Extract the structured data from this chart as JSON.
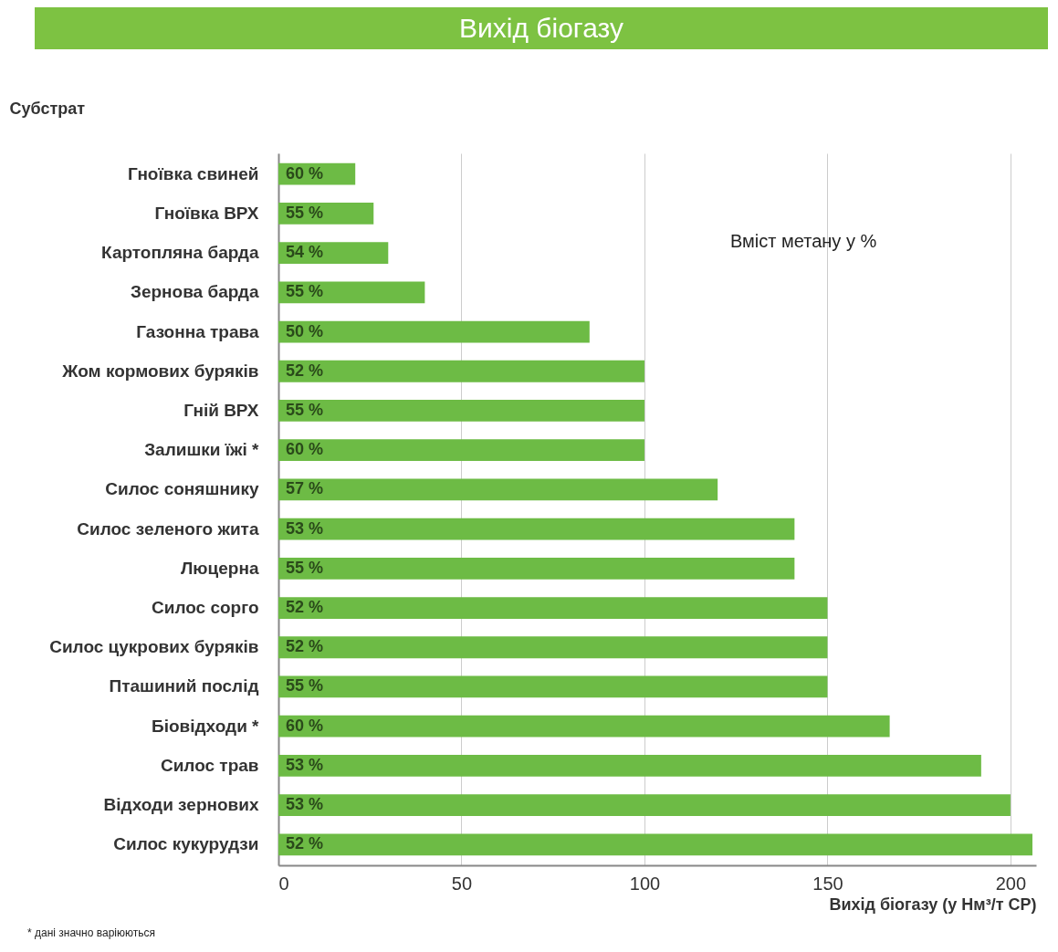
{
  "chart_data": {
    "type": "bar",
    "orientation": "horizontal",
    "title": "Вихід біогазу",
    "ylabel": "Субстрат",
    "xlabel": "Вихід біогазу (у Нм³/т СР)",
    "categories": [
      "Гноївка свиней",
      "Гноївка ВРХ",
      "Картопляна барда",
      "Зернова барда",
      "Газонна трава",
      "Жом кормових буряків",
      "Гній ВРХ",
      "Залишки їжі *",
      "Силос соняшнику",
      "Силос зеленого жита",
      "Люцерна",
      "Силос сорго",
      "Силос цукрових буряків",
      "Пташиний послід",
      "Біовідходи *",
      "Силос трав",
      "Відходи зернових",
      "Силос кукурудзи"
    ],
    "values": [
      21,
      26,
      30,
      40,
      85,
      100,
      100,
      100,
      120,
      141,
      141,
      150,
      150,
      150,
      167,
      192,
      200,
      206
    ],
    "color": "#6dbb45",
    "xlim": [
      0,
      207
    ],
    "xticks": [
      0,
      50,
      100,
      150,
      200
    ],
    "grid": "x",
    "annotations": [
      "Вміст метану у %",
      "* дані значно варіюються",
      "60 %",
      "55 %",
      "54 %",
      "55 %",
      "50 %",
      "52 %",
      "55 %",
      "60 %",
      "57 %",
      "53 %",
      "55 %",
      "52 %",
      "52 %",
      "55 %",
      "60 %",
      "53 %",
      "53 %",
      "52 %"
    ]
  }
}
